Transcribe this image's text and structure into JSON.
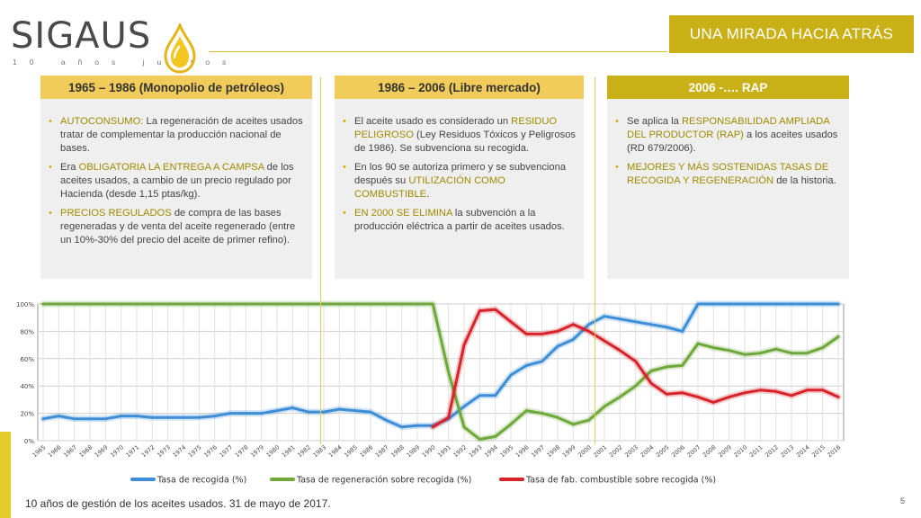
{
  "logo": {
    "name": "SIGAUS",
    "tagline": "10 años juntos"
  },
  "title": "UNA MIRADA HACIA ATRÁS",
  "columns": [
    {
      "heading": "1965 – 1986 (Monopolio de petróleos)",
      "bullets": [
        {
          "hl": "AUTOCONSUMO:",
          "text": " La regeneración de aceites usados tratar de complementar la producción nacional de bases."
        },
        {
          "pre": "Era ",
          "hl": "OBLIGATORIA LA ENTREGA A CAMPSA",
          "text": " de los aceites usados, a cambio de un precio regulado por Hacienda (desde 1,15 ptas/kg)."
        },
        {
          "hl": "PRECIOS REGULADOS",
          "text": " de compra de las bases regeneradas y de venta del aceite regenerado (entre un 10%-30% del precio del aceite de primer refino)."
        }
      ]
    },
    {
      "heading": "1986 – 2006 (Libre mercado)",
      "bullets": [
        {
          "pre": "El aceite usado es considerado un ",
          "hl": "RESIDUO PELIGROSO",
          "text": " (Ley Residuos Tóxicos y Peligrosos de 1986). Se subvenciona su recogida."
        },
        {
          "pre": "En los 90 se autoriza primero y se subvenciona después su ",
          "hl": "UTILIZACIÓN COMO COMBUSTIBLE",
          "text": "."
        },
        {
          "hl": "EN 2000 SE ELIMINA",
          "text": " la subvención a la producción eléctrica a partir de aceites usados."
        }
      ]
    },
    {
      "heading": "2006 -…. RAP",
      "bullets": [
        {
          "pre": "Se aplica la ",
          "hl": "RESPONSABILIDAD AMPLIADA DEL PRODUCTOR (RAP)",
          "text": " a los aceites usados (RD 679/2006)."
        },
        {
          "hl": "MEJORES Y MÁS SOSTENIDAS TASAS DE RECOGIDA Y REGENERACIÓN",
          "text": " de la historia."
        }
      ]
    }
  ],
  "chart_data": {
    "type": "line",
    "x": [
      "1965",
      "1966",
      "1967",
      "1968",
      "1969",
      "1970",
      "1971",
      "1972",
      "1973",
      "1974",
      "1975",
      "1976",
      "1977",
      "1978",
      "1979",
      "1980",
      "1981",
      "1982",
      "1983",
      "1984",
      "1985",
      "1986",
      "1987",
      "1988",
      "1989",
      "1990",
      "1991",
      "1992",
      "1993",
      "1994",
      "1995",
      "1996",
      "1997",
      "1998",
      "1999",
      "2000",
      "2001",
      "2002",
      "2003",
      "2004",
      "2005",
      "2006",
      "2007",
      "2008",
      "2009",
      "2010",
      "2011",
      "2012",
      "2013",
      "2014",
      "2015",
      "2016"
    ],
    "tick_labels": [
      "1965",
      "1966",
      "1967",
      "1968",
      "1969",
      "1970",
      "1971",
      "1972",
      "1973",
      "1974",
      "1975",
      "1976",
      "1977",
      "1978",
      "1979",
      "1980",
      "1981",
      "1982",
      "1983",
      "1984",
      "1985",
      "1986",
      "1987",
      "1988",
      "1989",
      "1990",
      "1991",
      "1992",
      "1993",
      "1994",
      "1995",
      "1996",
      "1997",
      "1998",
      "1999",
      "2000",
      "2001",
      "2002",
      "2003",
      "2004",
      "2005",
      "2006",
      "2007",
      "2008",
      "2009",
      "2010",
      "2011",
      "2012",
      "2013",
      "2014",
      "2015",
      "2016"
    ],
    "y_ticks": [
      "0%",
      "20%",
      "40%",
      "60%",
      "80%",
      "100%"
    ],
    "ylim": [
      0,
      100
    ],
    "grid": true,
    "legend_position": "bottom",
    "series": [
      {
        "name": "Tasa de recogida (%)",
        "color": "#3d8ed6",
        "values": [
          16,
          18,
          16,
          16,
          16,
          18,
          18,
          17,
          17,
          17,
          17,
          18,
          20,
          20,
          20,
          22,
          24,
          21,
          21,
          23,
          22,
          21,
          15,
          10,
          11,
          11,
          16,
          25,
          33,
          33,
          48,
          55,
          58,
          69,
          74,
          85,
          91,
          89,
          87,
          85,
          83,
          80,
          100,
          100,
          100,
          100,
          100,
          100,
          100,
          100,
          100,
          100
        ]
      },
      {
        "name": "Tasa de regeneración sobre recogida (%)",
        "color": "#6fa83a",
        "values": [
          100,
          100,
          100,
          100,
          100,
          100,
          100,
          100,
          100,
          100,
          100,
          100,
          100,
          100,
          100,
          100,
          100,
          100,
          100,
          100,
          100,
          100,
          100,
          100,
          100,
          100,
          50,
          10,
          1,
          3,
          12,
          22,
          20,
          17,
          12,
          15,
          25,
          32,
          40,
          51,
          54,
          55,
          71,
          68,
          66,
          63,
          64,
          67,
          64,
          64,
          68,
          76
        ]
      },
      {
        "name": "Tasa de fab. combustible sobre recogida (%)",
        "color": "#d8232a",
        "values": [
          null,
          null,
          null,
          null,
          null,
          null,
          null,
          null,
          null,
          null,
          null,
          null,
          null,
          null,
          null,
          null,
          null,
          null,
          null,
          null,
          null,
          null,
          null,
          null,
          null,
          10,
          17,
          70,
          95,
          96,
          87,
          78,
          78,
          80,
          85,
          80,
          73,
          66,
          58,
          42,
          34,
          35,
          32,
          28,
          32,
          35,
          37,
          36,
          33,
          37,
          37,
          32
        ]
      }
    ]
  },
  "footer": {
    "text": "10 años de gestión de los aceites usados. 31 de mayo de 2017.",
    "page": "5"
  },
  "colors": {
    "accent": "#c9b017",
    "header_light": "#f2cc5a",
    "panel": "#efefef"
  }
}
